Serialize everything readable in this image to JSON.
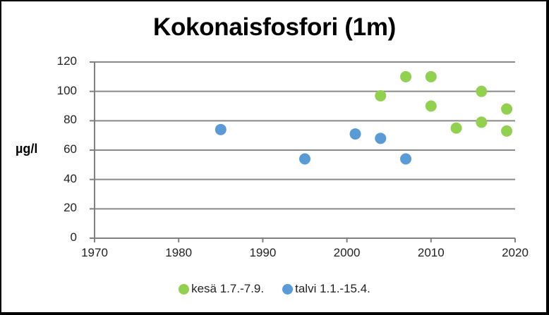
{
  "chart_data": {
    "type": "scatter",
    "title": "Kokonaisfosfori (1m)",
    "xlabel": "",
    "ylabel": "µg/l",
    "xlim": [
      1970,
      2020
    ],
    "ylim": [
      0,
      120
    ],
    "x_ticks": [
      "1970",
      "1980",
      "1990",
      "2000",
      "2010",
      "2020"
    ],
    "y_ticks": [
      "0",
      "20",
      "40",
      "60",
      "80",
      "100",
      "120"
    ],
    "grid": "horizontal",
    "legend_position": "bottom",
    "series": [
      {
        "name": "kesä 1.7.-7.9.",
        "color": "#92D050",
        "points": [
          {
            "x": 2004,
            "y": 97
          },
          {
            "x": 2007,
            "y": 110
          },
          {
            "x": 2010,
            "y": 110
          },
          {
            "x": 2010,
            "y": 90
          },
          {
            "x": 2013,
            "y": 75
          },
          {
            "x": 2016,
            "y": 100
          },
          {
            "x": 2016,
            "y": 79
          },
          {
            "x": 2019,
            "y": 88
          },
          {
            "x": 2019,
            "y": 73
          }
        ]
      },
      {
        "name": "talvi 1.1.-15.4.",
        "color": "#5B9BD5",
        "points": [
          {
            "x": 1985,
            "y": 74
          },
          {
            "x": 1995,
            "y": 54
          },
          {
            "x": 2001,
            "y": 71
          },
          {
            "x": 2004,
            "y": 68
          },
          {
            "x": 2007,
            "y": 54
          }
        ]
      }
    ]
  },
  "colors": {
    "grid": "#898989",
    "axis": "#808080",
    "frame": "#000000"
  }
}
